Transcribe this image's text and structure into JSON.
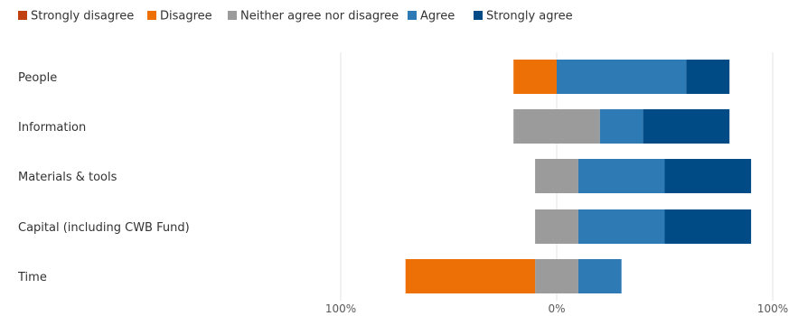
{
  "chart_data": {
    "type": "bar",
    "orientation": "horizontal",
    "stacked": "diverging",
    "title": "",
    "xlabel": "",
    "ylabel": "",
    "xlim": [
      -100,
      100
    ],
    "x_ticks": [
      "100%",
      "0%",
      "100%"
    ],
    "grid": "vertical lines at -100, 0, 100",
    "legend_position": "top-left",
    "categories": [
      "People",
      "Information",
      "Materials & tools",
      "Capital (including CWB Fund)",
      "Time"
    ],
    "series": [
      {
        "name": "Strongly disagree",
        "color": "#c0410f",
        "values": [
          0,
          0,
          0,
          0,
          0
        ]
      },
      {
        "name": "Disagree",
        "color": "#ed7006",
        "values": [
          20,
          0,
          0,
          0,
          60
        ]
      },
      {
        "name": "Neither agree nor disagree",
        "color": "#9b9b9b",
        "values": [
          0,
          40,
          20,
          20,
          20
        ]
      },
      {
        "name": "Agree",
        "color": "#2e7ab5",
        "values": [
          60,
          20,
          40,
          40,
          20
        ]
      },
      {
        "name": "Strongly agree",
        "color": "#004a85",
        "values": [
          20,
          40,
          40,
          40,
          0
        ]
      }
    ]
  }
}
